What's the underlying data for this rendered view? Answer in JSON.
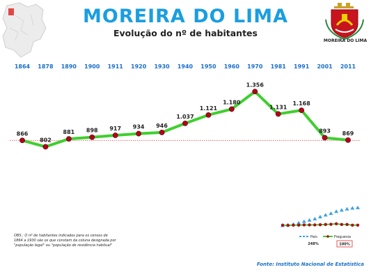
{
  "header": {
    "title": "MOREIRA DO LIMA",
    "subtitle": "Evolução do nº de habitantes"
  },
  "crest": {
    "label": "MOREIRA DO LIMA"
  },
  "note": "OBS.: O nº de habitantes indicados para os censos de 1864 a 1930 são os que constam da coluna designada por \"população legal\" ou \"população de residência habitual\"",
  "source": "Fonte: Instituto Nacional de Estatística",
  "colors": {
    "title": "#1a9ee0",
    "years": "#1a6fcc",
    "line": "#3fcf2f",
    "marker": "#b3001b",
    "reference": "#e03030"
  },
  "chart_data": {
    "type": "line",
    "title": "Evolução do nº de habitantes",
    "x": [
      "1864",
      "1878",
      "1890",
      "1900",
      "1911",
      "1920",
      "1930",
      "1940",
      "1950",
      "1960",
      "1970",
      "1981",
      "1991",
      "2001",
      "2011"
    ],
    "series": [
      {
        "values": [
          866,
          802,
          881,
          898,
          917,
          934,
          946,
          1037,
          1121,
          1180,
          1356,
          1131,
          1168,
          893,
          869
        ],
        "labels": [
          "866",
          "802",
          "881",
          "898",
          "917",
          "934",
          "946",
          "1.037",
          "1.121",
          "1.180",
          "1.356",
          "1.131",
          "1.168",
          "893",
          "869"
        ]
      }
    ],
    "reference_line": 866,
    "grid": false
  },
  "mini_chart": {
    "legend": [
      {
        "name": "País",
        "value": "248%"
      },
      {
        "name": "Freguesia",
        "value": "100%"
      }
    ],
    "pais_series": [
      8,
      11,
      14,
      20,
      26,
      32,
      38,
      47,
      55,
      62,
      71,
      77,
      82,
      86,
      88
    ],
    "freguesia_series": [
      10,
      9,
      10,
      10,
      11,
      11,
      11,
      12,
      13,
      14,
      16,
      13,
      13,
      10,
      10
    ]
  }
}
